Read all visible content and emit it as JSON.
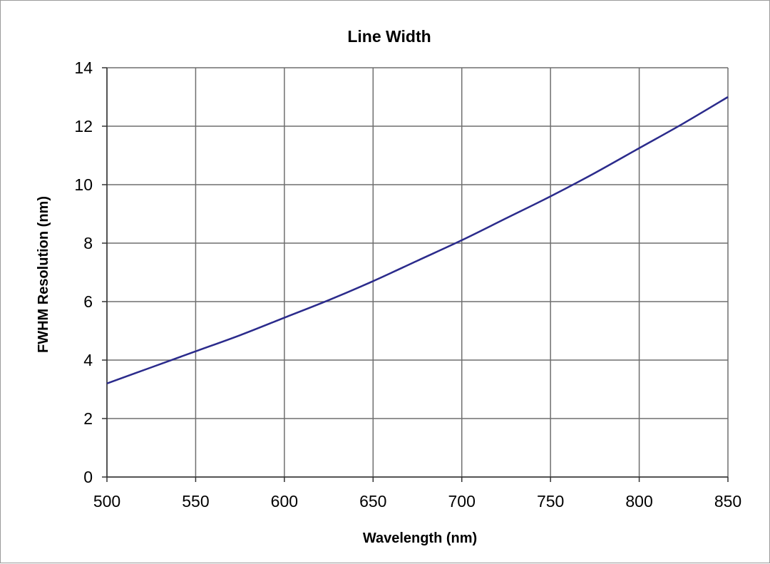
{
  "chart_data": {
    "type": "line",
    "title": "Line Width",
    "xlabel": "Wavelength (nm)",
    "ylabel": "FWHM Resolution (nm)",
    "xlim": [
      500,
      850
    ],
    "ylim": [
      0,
      14
    ],
    "xticks": [
      500,
      550,
      600,
      650,
      700,
      750,
      800,
      850
    ],
    "yticks": [
      0,
      2,
      4,
      6,
      8,
      10,
      12,
      14
    ],
    "grid": true,
    "legend": "none",
    "series": [
      {
        "color": "#2b2b8c",
        "x": [
          500,
          525,
          550,
          575,
          600,
          625,
          650,
          675,
          700,
          725,
          750,
          775,
          800,
          825,
          850
        ],
        "y": [
          3.2,
          3.75,
          4.3,
          4.85,
          5.45,
          6.05,
          6.7,
          7.4,
          8.1,
          8.85,
          9.6,
          10.4,
          11.25,
          12.1,
          13.0
        ]
      }
    ]
  }
}
